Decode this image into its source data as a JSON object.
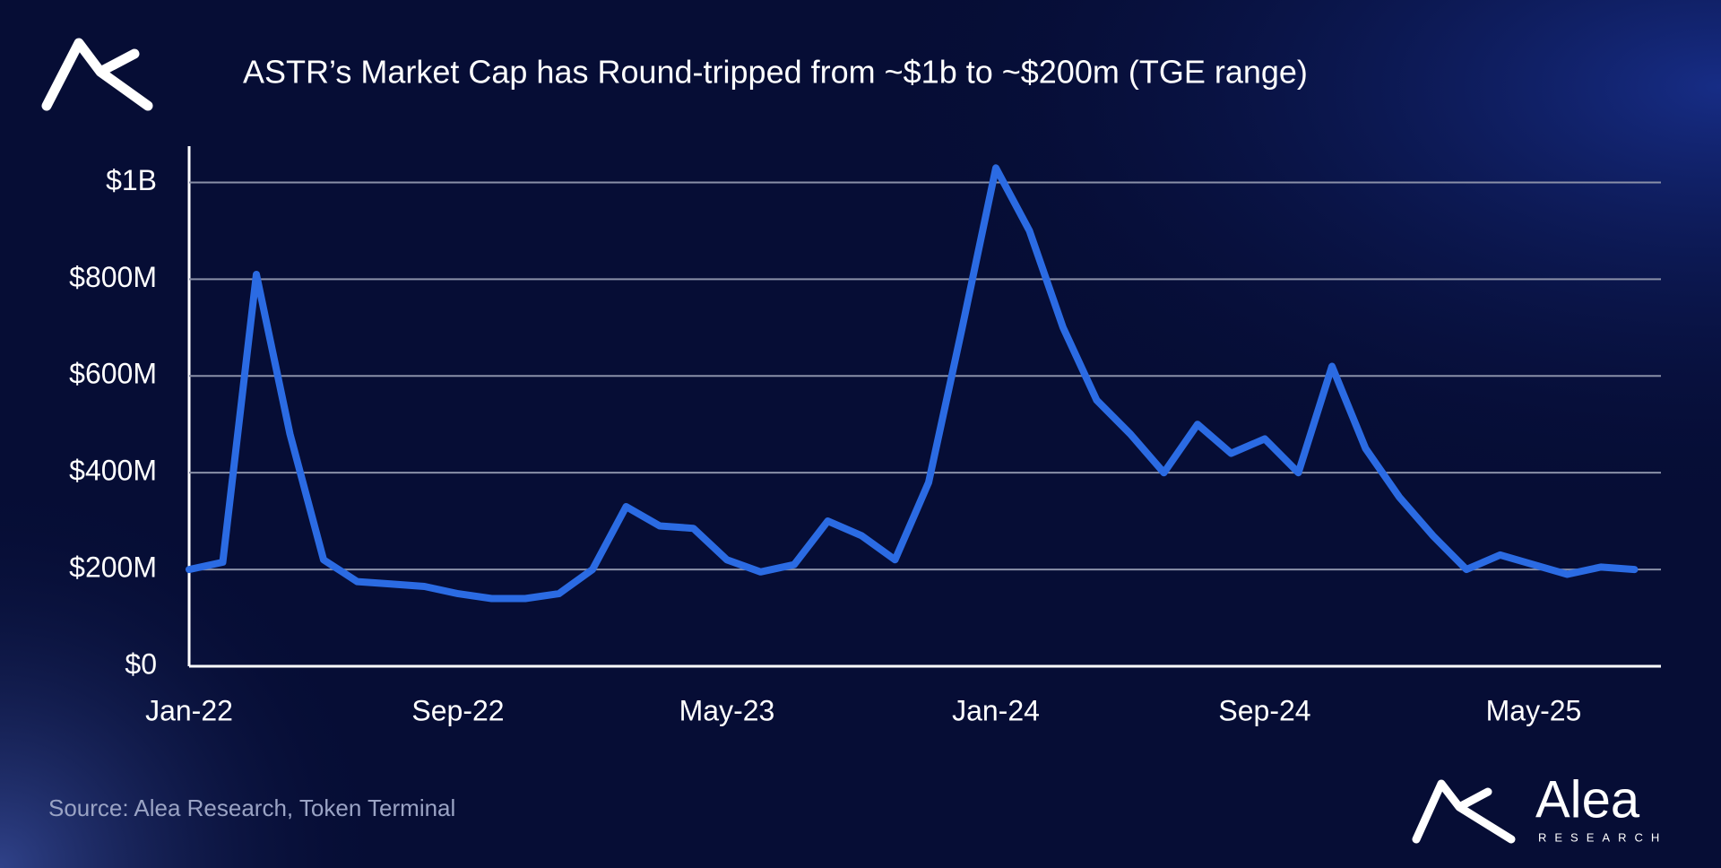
{
  "chart_data": {
    "type": "line",
    "title": "ASTR’s Market Cap has Round-tripped from ~$1b to ~$200m (TGE range)",
    "source": "Source: Alea Research, Token Terminal",
    "brand": {
      "name": "Alea",
      "tagline": "RESEARCH"
    },
    "categories": [
      "Jan-22",
      "Feb-22",
      "Mar-22",
      "Apr-22",
      "May-22",
      "Jun-22",
      "Jul-22",
      "Aug-22",
      "Sep-22",
      "Oct-22",
      "Nov-22",
      "Dec-22",
      "Jan-23",
      "Feb-23",
      "Mar-23",
      "Apr-23",
      "May-23",
      "Jun-23",
      "Jul-23",
      "Aug-23",
      "Sep-23",
      "Oct-23",
      "Nov-23",
      "Dec-23",
      "Jan-24",
      "Feb-24",
      "Mar-24",
      "Apr-24",
      "May-24",
      "Jun-24",
      "Jul-24",
      "Aug-24",
      "Sep-24",
      "Oct-24",
      "Nov-24",
      "Dec-24",
      "Jan-25",
      "Feb-25",
      "Mar-25",
      "Apr-25",
      "May-25",
      "Jun-25",
      "Jul-25",
      "Aug-25"
    ],
    "values": [
      200,
      215,
      810,
      480,
      220,
      175,
      170,
      165,
      150,
      140,
      140,
      150,
      200,
      330,
      290,
      285,
      220,
      195,
      210,
      300,
      270,
      220,
      380,
      700,
      1030,
      900,
      700,
      550,
      480,
      400,
      500,
      440,
      470,
      400,
      620,
      450,
      350,
      270,
      200,
      230,
      210,
      190,
      205,
      200
    ],
    "color": "#2b6be3",
    "xticks": [
      "Jan-22",
      "Sep-22",
      "May-23",
      "Jan-24",
      "Sep-24",
      "May-25"
    ],
    "ylim": [
      0,
      1075
    ],
    "yticks": [
      {
        "value": 0,
        "label": "$0"
      },
      {
        "value": 200,
        "label": "$200M"
      },
      {
        "value": 400,
        "label": "$400M"
      },
      {
        "value": 600,
        "label": "$600M"
      },
      {
        "value": 800,
        "label": "$800M"
      },
      {
        "value": 1000,
        "label": "$1B"
      }
    ],
    "grid": true
  }
}
